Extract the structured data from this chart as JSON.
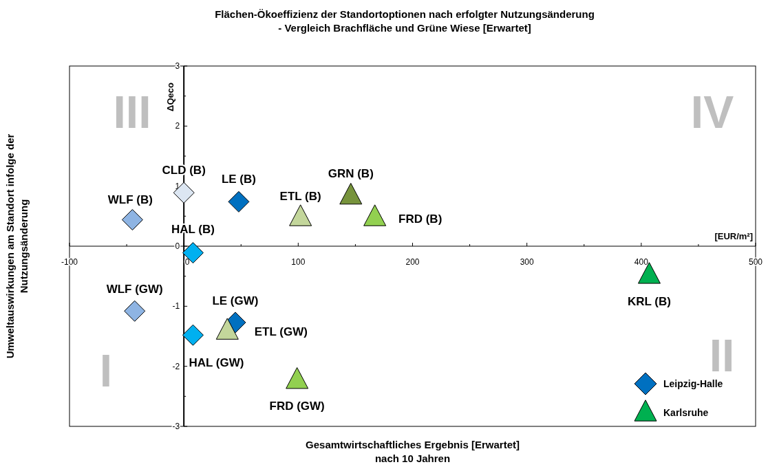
{
  "chart_data": {
    "type": "scatter",
    "title": "Flächen-Ökoeffizienz der Standortoptionen nach erfolgter Nutzungsänderung\n- Vergleich Brachfläche und Grüne Wiese [Erwartet]",
    "xlabel": "Gesamtwirtschaftliches Ergebnis [Erwartet]\nnach 10 Jahren",
    "ylabel": "Umweltauswirkungen am Standort infolge der\nNutzungsänderung",
    "xlim": [
      -100,
      500
    ],
    "ylim": [
      -3,
      3
    ],
    "xticks": [
      -100,
      {
        "value": -50,
        "label": null
      },
      0,
      {
        "value": 50,
        "label": null
      },
      100,
      {
        "value": 150,
        "label": null
      },
      200,
      {
        "value": 250,
        "label": null
      },
      300,
      {
        "value": 350,
        "label": null
      },
      400,
      {
        "value": 450,
        "label": null
      },
      500
    ],
    "yticks": [
      -3,
      {
        "value": -2.5,
        "label": null
      },
      -2,
      {
        "value": -1.5,
        "label": null
      },
      -1,
      {
        "value": -0.5,
        "label": null
      },
      0,
      {
        "value": 0.5,
        "label": null
      },
      1,
      {
        "value": 1.5,
        "label": null
      },
      2,
      {
        "value": 2.5,
        "label": null
      },
      3
    ],
    "grid": false,
    "legend": "bottom right",
    "series": [
      {
        "name": "Leipzig-Halle",
        "color": "#0070c0",
        "marker": "diamond",
        "x": [
          -45,
          0,
          48,
          8,
          -43,
          45,
          8
        ],
        "values": [
          0.44,
          0.89,
          0.74,
          -0.11,
          -1.08,
          -1.27,
          -1.48
        ],
        "colors": [
          "#8eb4e3",
          "#dce6f2",
          "#0070c0",
          "#00b0f0",
          "#8eb4e3",
          "#0070c0",
          "#00b0f0"
        ]
      },
      {
        "name": "Karlsruhe",
        "color": "#00b050",
        "marker": "triangle",
        "x": [
          102,
          146,
          167,
          407,
          38,
          99
        ],
        "values": [
          0.48,
          0.84,
          0.48,
          -0.48,
          -1.41,
          -2.23
        ],
        "colors": [
          "#c3d69b",
          "#77933c",
          "#92d050",
          "#00b050",
          "#c3d69b",
          "#92d050"
        ]
      }
    ],
    "annotations": [
      "III",
      "IV",
      "I",
      "II",
      "ΔQeco",
      "[EUR/m²]",
      {
        "text": "WLF (B)",
        "x": -45,
        "y": 0.44
      },
      {
        "text": "CLD (B)",
        "x": 0,
        "y": 0.89
      },
      {
        "text": "LE (B)",
        "x": 48,
        "y": 0.74
      },
      {
        "text": "HAL (B)",
        "x": 8,
        "y": -0.11
      },
      {
        "text": "ETL (B)",
        "x": 102,
        "y": 0.48
      },
      {
        "text": "GRN (B)",
        "x": 146,
        "y": 0.84
      },
      {
        "text": "FRD (B)",
        "x": 167,
        "y": 0.48
      },
      {
        "text": "KRL (B)",
        "x": 407,
        "y": -0.48
      },
      {
        "text": "WLF (GW)",
        "x": -43,
        "y": -1.08
      },
      {
        "text": "LE (GW)",
        "x": 45,
        "y": -1.27
      },
      {
        "text": "ETL (GW)",
        "x": 38,
        "y": -1.41
      },
      {
        "text": "HAL (GW)",
        "x": 8,
        "y": -1.48
      },
      {
        "text": "FRD (GW)",
        "x": 99,
        "y": -2.23
      }
    ]
  }
}
